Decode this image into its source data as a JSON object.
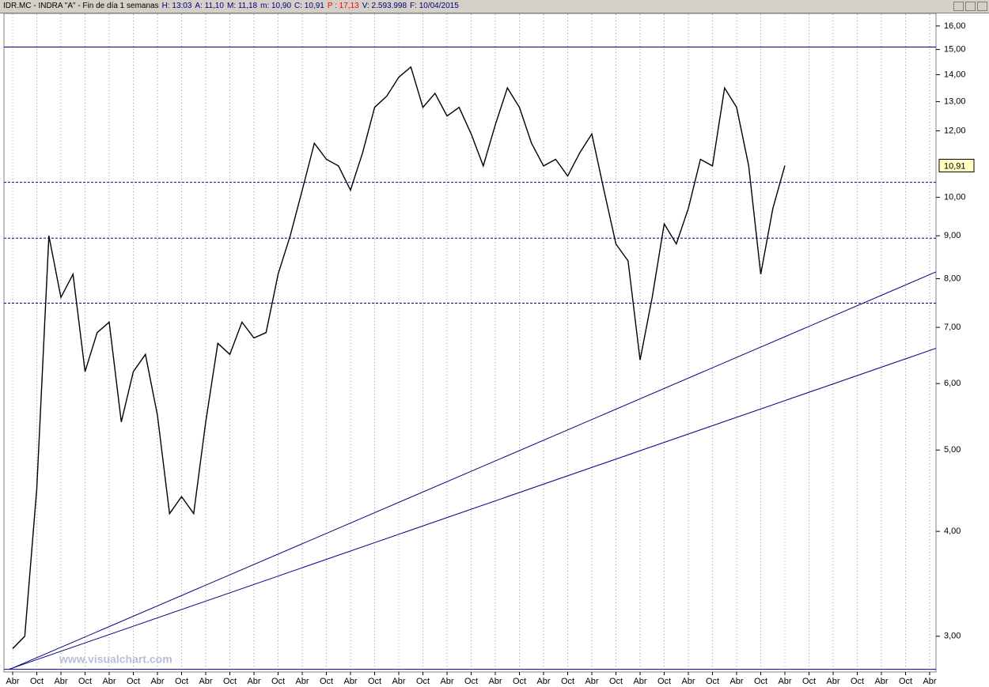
{
  "chart_data": {
    "type": "line",
    "header": [
      {
        "text": "IDR.MC - INDRA \"A\" - Fin de día 1 semanas",
        "color": "#000000"
      },
      {
        "text": "H: 13:03",
        "color": "#000080"
      },
      {
        "text": "A: 11,10",
        "color": "#000080"
      },
      {
        "text": "M: 11,18",
        "color": "#000080"
      },
      {
        "text": "m: 10,90",
        "color": "#000080"
      },
      {
        "text": "C: 10,91",
        "color": "#000080"
      },
      {
        "text": "P : 17,13",
        "color": "#ff0000"
      },
      {
        "text": "V: 2.593.998",
        "color": "#000080"
      },
      {
        "text": "F: 10/04/2015",
        "color": "#000080"
      }
    ],
    "watermark": "www.visualchart.com",
    "x_labels": [
      "Abr",
      "Oct",
      "Abr",
      "Oct",
      "Abr",
      "Oct",
      "Abr",
      "Oct",
      "Abr",
      "Oct",
      "Abr",
      "Oct",
      "Abr",
      "Oct",
      "Abr",
      "Oct",
      "Abr",
      "Oct",
      "Abr",
      "Oct",
      "Abr",
      "Oct",
      "Abr",
      "Oct",
      "Abr",
      "Oct",
      "Abr",
      "Oct",
      "Abr",
      "Oct",
      "Abr",
      "Oct",
      "Abr",
      "Oct",
      "Abr",
      "Oct",
      "Abr",
      "Oct",
      "Abr"
    ],
    "series": [
      {
        "name": "IDR.MC",
        "color": "#000000",
        "values": [
          2.9,
          3.0,
          4.5,
          9.0,
          7.6,
          8.1,
          6.2,
          6.9,
          7.1,
          5.4,
          6.2,
          6.5,
          5.5,
          4.2,
          4.4,
          4.2,
          5.4,
          6.7,
          6.5,
          7.1,
          6.8,
          6.9,
          8.1,
          9.0,
          10.2,
          11.6,
          11.1,
          10.9,
          10.2,
          11.3,
          12.8,
          13.2,
          13.9,
          14.3,
          12.8,
          13.3,
          12.5,
          12.8,
          11.9,
          10.9,
          12.2,
          13.5,
          12.8,
          11.6,
          10.9,
          11.1,
          10.6,
          11.3,
          11.9,
          10.2,
          8.8,
          8.4,
          6.4,
          7.6,
          9.3,
          8.8,
          9.7,
          11.1,
          10.9,
          13.5,
          12.8,
          10.9,
          8.1,
          9.7,
          10.91
        ]
      }
    ],
    "last_value_label": "10,91",
    "log_scale": true,
    "ylim": [
      2.72,
      16.56
    ],
    "yticks": [
      {
        "value": 3,
        "label": "3,00"
      },
      {
        "value": 4,
        "label": "4,00"
      },
      {
        "value": 5,
        "label": "5,00"
      },
      {
        "value": 6,
        "label": "6,00"
      },
      {
        "value": 7,
        "label": "7,00"
      },
      {
        "value": 8,
        "label": "8,00"
      },
      {
        "value": 9,
        "label": "9,00"
      },
      {
        "value": 10,
        "label": "10,00"
      },
      {
        "value": 12,
        "label": "12,00"
      },
      {
        "value": 13,
        "label": "13,00"
      },
      {
        "value": 14,
        "label": "14,00"
      },
      {
        "value": 15,
        "label": "15,00"
      },
      {
        "value": 16,
        "label": "16,00"
      }
    ],
    "levels": [
      {
        "value": 15.1,
        "style": "solid"
      },
      {
        "value": 10.42,
        "style": "dashed"
      },
      {
        "value": 8.94,
        "style": "dashed"
      },
      {
        "value": 7.48,
        "style": "dashed"
      },
      {
        "value": 2.74,
        "style": "solid"
      }
    ],
    "trendlines": [
      {
        "start_value": 2.75,
        "end_value": 8.09
      },
      {
        "start_value": 2.75,
        "end_value": 6.57
      }
    ],
    "line_color": "#000080",
    "grid": true
  }
}
